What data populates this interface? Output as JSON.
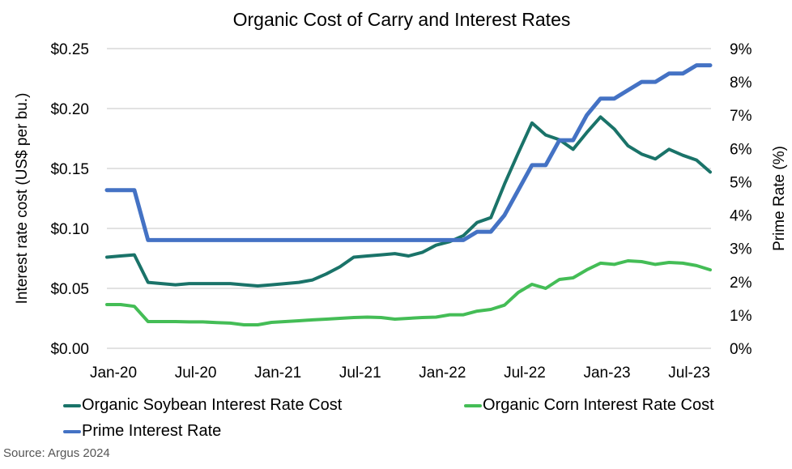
{
  "chart_data": {
    "type": "line",
    "title": "Organic Cost of Carry and Interest Rates",
    "xlabel": "",
    "ylabel": "Interest rate cost (US$ per bu.)",
    "y2label": "Prime Rate (%)",
    "ylim": [
      0,
      0.25
    ],
    "y2lim": [
      0,
      9
    ],
    "y_ticks": [
      "$0.00",
      "$0.05",
      "$0.10",
      "$0.15",
      "$0.20",
      "$0.25"
    ],
    "y2_ticks": [
      "0%",
      "1%",
      "2%",
      "3%",
      "4%",
      "5%",
      "6%",
      "7%",
      "8%",
      "9%"
    ],
    "x_tick_labels": [
      "Jan-20",
      "Jul-20",
      "Jan-21",
      "Jul-21",
      "Jan-22",
      "Jul-22",
      "Jan-23",
      "Jul-23"
    ],
    "x": [
      "Jan-20",
      "Feb-20",
      "Mar-20",
      "Apr-20",
      "May-20",
      "Jun-20",
      "Jul-20",
      "Aug-20",
      "Sep-20",
      "Oct-20",
      "Nov-20",
      "Dec-20",
      "Jan-21",
      "Feb-21",
      "Mar-21",
      "Apr-21",
      "May-21",
      "Jun-21",
      "Jul-21",
      "Aug-21",
      "Sep-21",
      "Oct-21",
      "Nov-21",
      "Dec-21",
      "Jan-22",
      "Feb-22",
      "Mar-22",
      "Apr-22",
      "May-22",
      "Jun-22",
      "Jul-22",
      "Aug-22",
      "Sep-22",
      "Oct-22",
      "Nov-22",
      "Dec-22",
      "Jan-23",
      "Feb-23",
      "Mar-23",
      "Apr-23",
      "May-23",
      "Jun-23",
      "Jul-23",
      "Aug-23",
      "Sep-23"
    ],
    "grid": true,
    "legend_position": "bottom",
    "series": [
      {
        "name": "Organic Soybean Interest Rate Cost",
        "axis": "left",
        "color": "#1a7369",
        "values": [
          0.076,
          0.077,
          0.078,
          0.055,
          0.054,
          0.053,
          0.054,
          0.054,
          0.054,
          0.054,
          0.053,
          0.052,
          0.053,
          0.054,
          0.055,
          0.057,
          0.062,
          0.068,
          0.076,
          0.077,
          0.078,
          0.079,
          0.077,
          0.08,
          0.086,
          0.089,
          0.094,
          0.105,
          0.109,
          0.137,
          0.163,
          0.188,
          0.178,
          0.174,
          0.166,
          0.18,
          0.193,
          0.183,
          0.169,
          0.162,
          0.158,
          0.166,
          0.161,
          0.157,
          0.147
        ]
      },
      {
        "name": "Organic Corn Interest Rate Cost",
        "axis": "left",
        "color": "#44bd56",
        "values": [
          0.0365,
          0.0365,
          0.035,
          0.0223,
          0.0223,
          0.0223,
          0.022,
          0.022,
          0.0215,
          0.021,
          0.0196,
          0.0196,
          0.0216,
          0.0223,
          0.023,
          0.0237,
          0.0243,
          0.025,
          0.0257,
          0.026,
          0.0257,
          0.0243,
          0.025,
          0.0257,
          0.026,
          0.028,
          0.028,
          0.031,
          0.0324,
          0.036,
          0.0466,
          0.0534,
          0.05,
          0.0574,
          0.0588,
          0.0655,
          0.071,
          0.07,
          0.073,
          0.0723,
          0.07,
          0.0716,
          0.071,
          0.069,
          0.0655
        ]
      },
      {
        "name": "Prime Interest Rate",
        "axis": "right",
        "color": "#4472c4",
        "values": [
          4.75,
          4.75,
          4.75,
          3.25,
          3.25,
          3.25,
          3.25,
          3.25,
          3.25,
          3.25,
          3.25,
          3.25,
          3.25,
          3.25,
          3.25,
          3.25,
          3.25,
          3.25,
          3.25,
          3.25,
          3.25,
          3.25,
          3.25,
          3.25,
          3.25,
          3.25,
          3.25,
          3.5,
          3.5,
          4.0,
          4.75,
          5.5,
          5.5,
          6.25,
          6.25,
          7.0,
          7.5,
          7.5,
          7.75,
          8.0,
          8.0,
          8.25,
          8.25,
          8.5,
          8.5
        ]
      }
    ]
  },
  "legend": {
    "items": [
      {
        "label": "Organic Soybean Interest Rate Cost",
        "color": "#1a7369"
      },
      {
        "label": "Organic Corn Interest Rate Cost",
        "color": "#44bd56"
      },
      {
        "label": "Prime Interest Rate",
        "color": "#4472c4"
      }
    ]
  },
  "source": "Source: Argus 2024",
  "colors": {
    "gridline": "#d9d9d9"
  }
}
